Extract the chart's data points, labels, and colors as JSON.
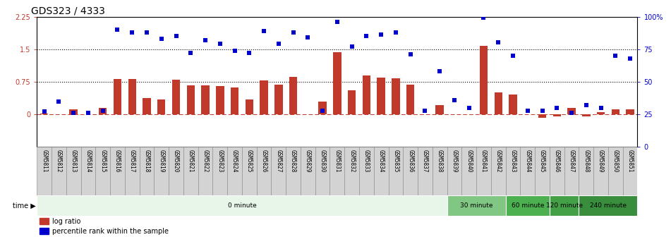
{
  "title": "GDS323 / 4333",
  "samples": [
    "GSM5811",
    "GSM5812",
    "GSM5813",
    "GSM5814",
    "GSM5815",
    "GSM5816",
    "GSM5817",
    "GSM5818",
    "GSM5819",
    "GSM5820",
    "GSM5821",
    "GSM5822",
    "GSM5823",
    "GSM5824",
    "GSM5825",
    "GSM5826",
    "GSM5827",
    "GSM5828",
    "GSM5829",
    "GSM5830",
    "GSM5831",
    "GSM5832",
    "GSM5833",
    "GSM5834",
    "GSM5835",
    "GSM5836",
    "GSM5837",
    "GSM5838",
    "GSM5839",
    "GSM5840",
    "GSM5841",
    "GSM5842",
    "GSM5843",
    "GSM5844",
    "GSM5845",
    "GSM5846",
    "GSM5847",
    "GSM5848",
    "GSM5849",
    "GSM5850",
    "GSM5851"
  ],
  "log_ratio": [
    0.02,
    0.0,
    0.12,
    0.0,
    0.15,
    0.82,
    0.82,
    0.38,
    0.35,
    0.8,
    0.67,
    0.67,
    0.65,
    0.62,
    0.35,
    0.78,
    0.68,
    0.87,
    0.0,
    0.3,
    1.43,
    0.56,
    0.9,
    0.85,
    0.83,
    0.68,
    0.0,
    0.22,
    0.0,
    0.0,
    1.57,
    0.5,
    0.45,
    0.0,
    -0.08,
    -0.05,
    0.14,
    -0.05,
    0.05,
    0.12,
    0.12
  ],
  "percentile": [
    27,
    35,
    26,
    26,
    28,
    90,
    88,
    88,
    83,
    85,
    72,
    82,
    79,
    74,
    72,
    89,
    79,
    88,
    84,
    28,
    96,
    77,
    85,
    86,
    88,
    71,
    28,
    58,
    36,
    30,
    99,
    80,
    70,
    28,
    28,
    30,
    26,
    32,
    30,
    70,
    68
  ],
  "time_groups": [
    {
      "label": "0 minute",
      "start": 0,
      "end": 28,
      "color": "#e8f5e9"
    },
    {
      "label": "30 minute",
      "start": 28,
      "end": 32,
      "color": "#81c784"
    },
    {
      "label": "60 minute",
      "start": 32,
      "end": 35,
      "color": "#4caf50"
    },
    {
      "label": "120 minute",
      "start": 35,
      "end": 37,
      "color": "#43a047"
    },
    {
      "label": "240 minute",
      "start": 37,
      "end": 41,
      "color": "#388e3c"
    }
  ],
  "bar_color": "#c0392b",
  "dot_color": "#0000cc",
  "dot_size": 18,
  "ylim_left": [
    -0.75,
    2.25
  ],
  "ylim_right": [
    0,
    100
  ],
  "yticks_left": [
    0.0,
    0.75,
    1.5,
    2.25
  ],
  "yticks_left_labels": [
    "0",
    "0.75",
    "1.5",
    "2.25"
  ],
  "yticks_right": [
    0,
    25,
    50,
    75,
    100
  ],
  "yticks_right_labels": [
    "0",
    "25",
    "50",
    "75",
    "100%"
  ],
  "hlines_dotted": [
    0.75,
    1.5
  ],
  "title_fontsize": 10,
  "tick_fontsize": 7,
  "sample_fontsize": 5.5,
  "legend_items": [
    {
      "label": "log ratio",
      "color": "#c0392b"
    },
    {
      "label": "percentile rank within the sample",
      "color": "#0000cc"
    }
  ],
  "xlabel_bg": "#d3d3d3",
  "xlabel_border": "#888888"
}
